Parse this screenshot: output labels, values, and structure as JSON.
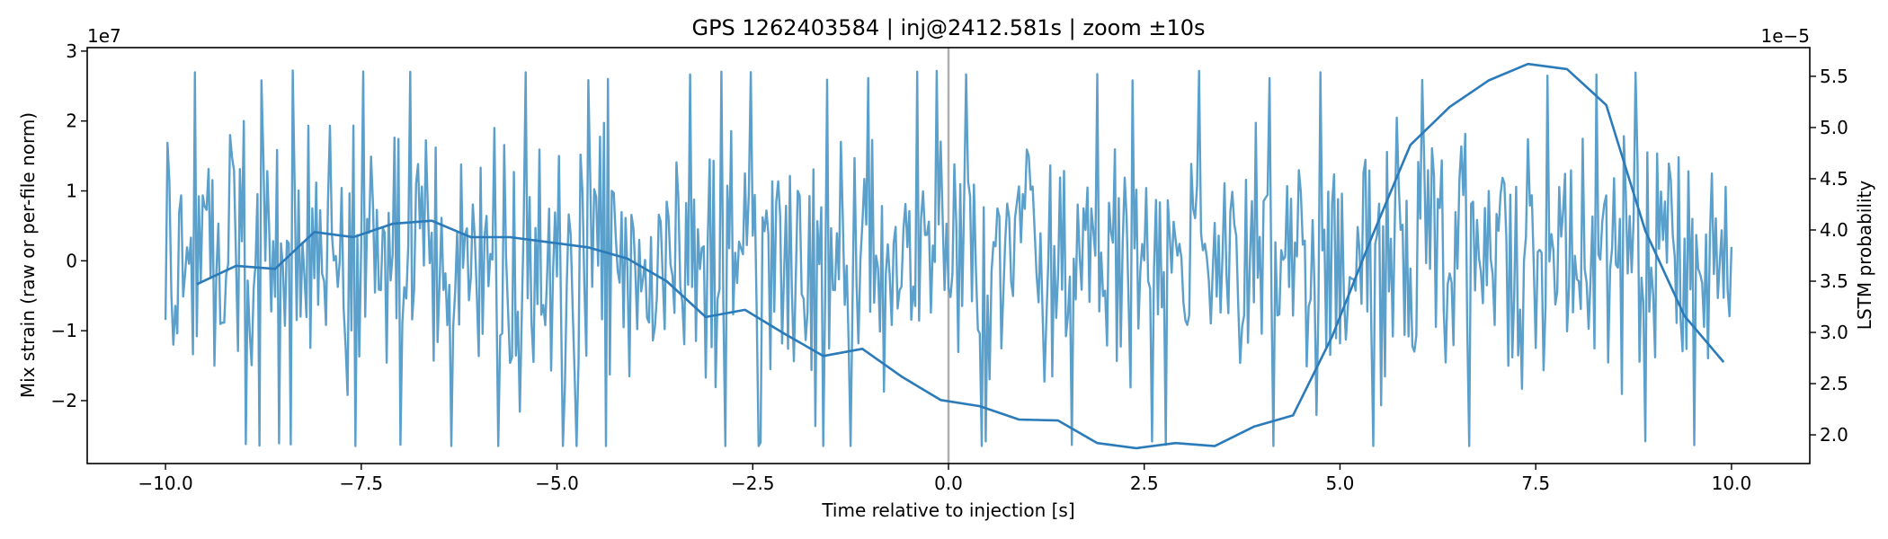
{
  "chart_data": {
    "type": "line",
    "title": "GPS 1262403584 | inj@2412.581s | zoom ±10s",
    "xlabel": "Time relative to injection [s]",
    "ylabel_left": "Mix strain (raw or per-file norm)",
    "ylabel_right": "LSTM probability",
    "left_offset_label": "1e7",
    "right_offset_label": "1e−5",
    "xlim": [
      -11.0,
      11.0
    ],
    "ylim_left": [
      -2.9,
      3.05
    ],
    "ylim_right": [
      1.72,
      5.78
    ],
    "xticks": [
      -10.0,
      -7.5,
      -5.0,
      -2.5,
      0.0,
      2.5,
      5.0,
      7.5,
      10.0
    ],
    "xtick_labels": [
      "−10.0",
      "−7.5",
      "−5.0",
      "−2.5",
      "0.0",
      "2.5",
      "5.0",
      "7.5",
      "10.0"
    ],
    "yticks_left": [
      -2,
      -1,
      0,
      1,
      2,
      3
    ],
    "ytick_labels_left": [
      "−2",
      "−1",
      "0",
      "1",
      "2",
      "3"
    ],
    "yticks_right": [
      2.0,
      2.5,
      3.0,
      3.5,
      4.0,
      4.5,
      5.0,
      5.5
    ],
    "ytick_labels_right": [
      "2.0",
      "2.5",
      "3.0",
      "3.5",
      "4.0",
      "4.5",
      "5.0",
      "5.5"
    ],
    "injection_marker_x": 0.0,
    "strain_series": {
      "name": "Mix strain",
      "color": "#5b9fcb",
      "x_start": -10.0,
      "x_end": 10.0,
      "n_points": 801,
      "approx_range": [
        -2.65,
        2.73
      ],
      "note": "dense oscillatory noise-like signal spanning the full window"
    },
    "lstm_series": {
      "name": "LSTM probability",
      "color": "#2b7bba",
      "x": [
        -9.6,
        -9.1,
        -8.6,
        -8.1,
        -7.6,
        -7.1,
        -6.6,
        -6.1,
        -5.6,
        -5.1,
        -4.6,
        -4.1,
        -3.6,
        -3.1,
        -2.6,
        -2.1,
        -1.6,
        -1.1,
        -0.6,
        -0.1,
        0.4,
        0.9,
        1.4,
        1.9,
        2.4,
        2.9,
        3.4,
        3.9,
        4.4,
        4.9,
        5.4,
        5.9,
        6.4,
        6.9,
        7.4,
        7.9,
        8.4,
        8.9,
        9.4,
        9.9
      ],
      "y": [
        3.47,
        3.65,
        3.62,
        3.98,
        3.93,
        4.06,
        4.09,
        3.93,
        3.93,
        3.88,
        3.83,
        3.72,
        3.5,
        3.15,
        3.22,
        2.99,
        2.77,
        2.84,
        2.57,
        2.34,
        2.28,
        2.15,
        2.14,
        1.92,
        1.87,
        1.92,
        1.89,
        2.08,
        2.19,
        2.96,
        3.92,
        4.83,
        5.2,
        5.46,
        5.62,
        5.57,
        5.22,
        3.99,
        3.16,
        2.71
      ]
    }
  }
}
